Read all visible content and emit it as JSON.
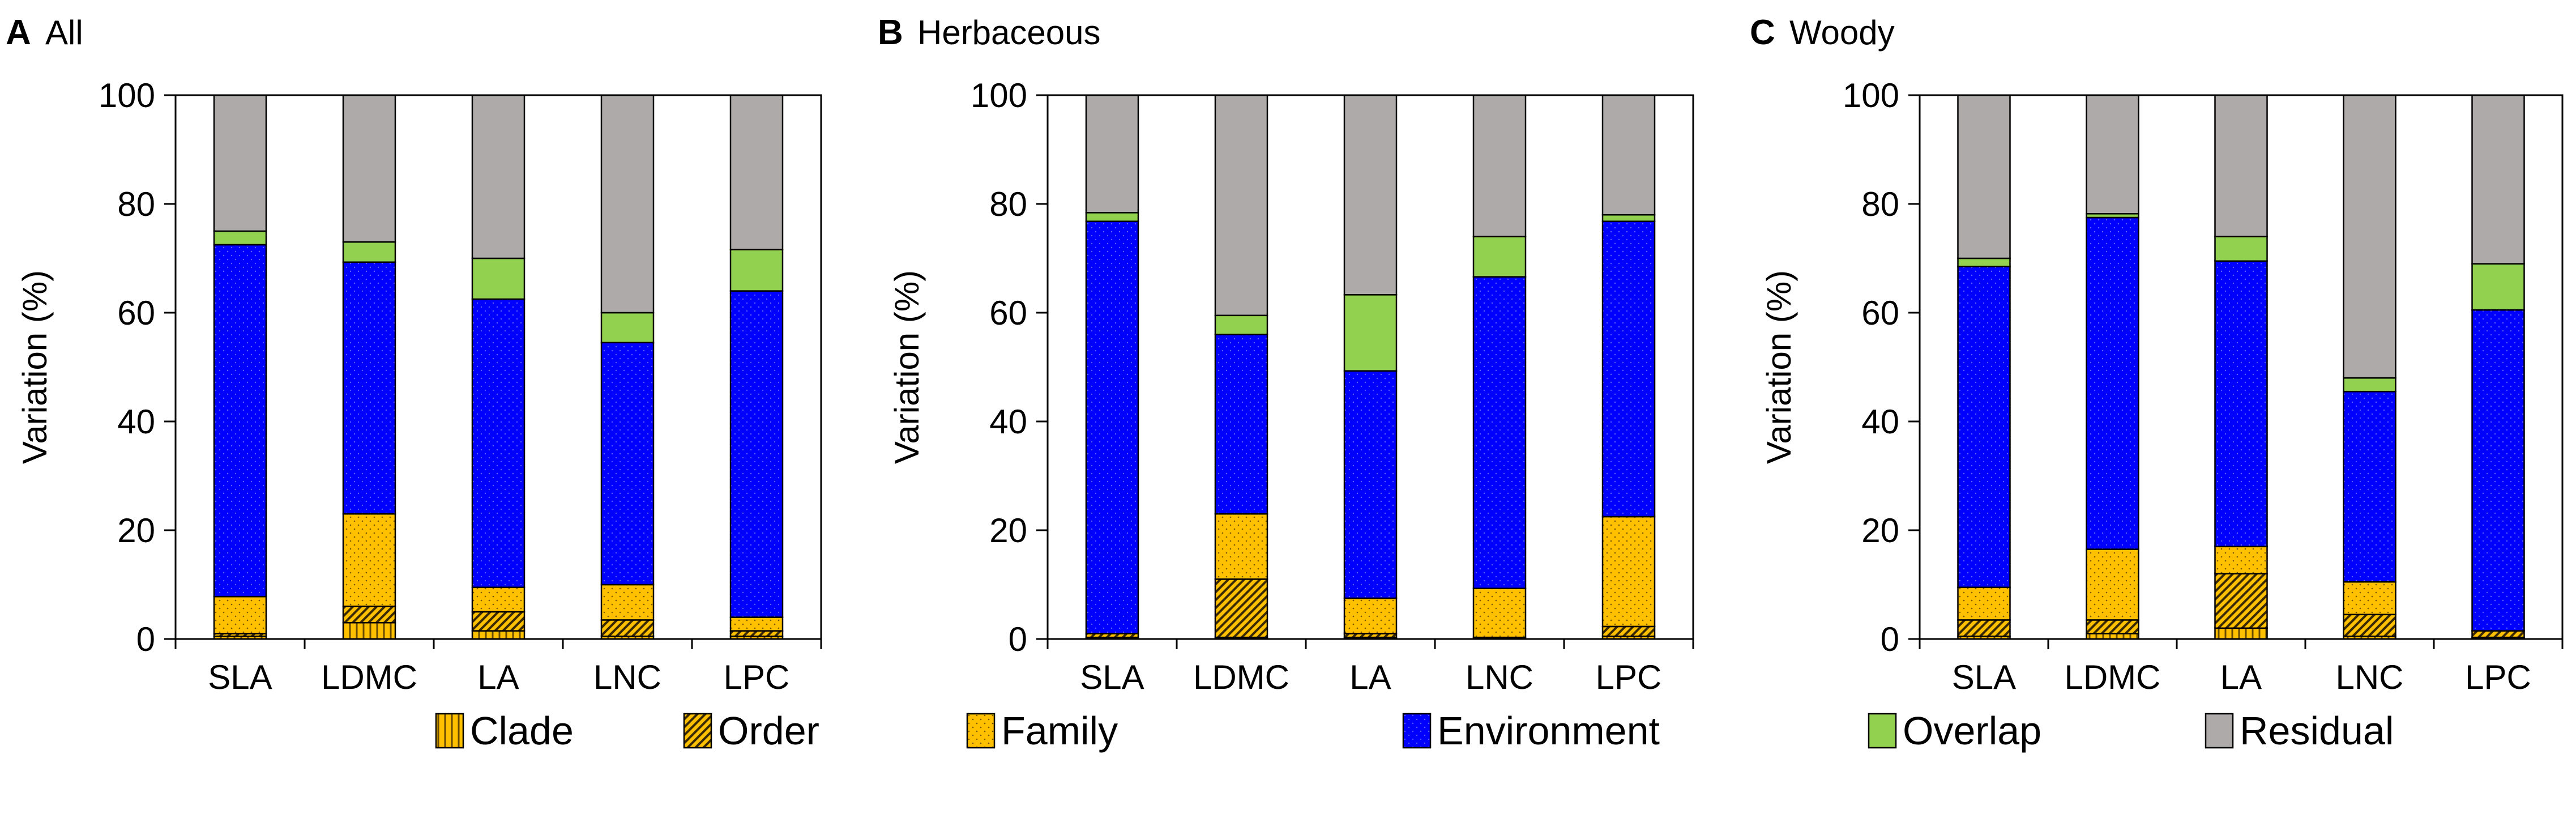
{
  "chart_data": [
    {
      "type": "bar",
      "stacked": true,
      "panel": "A",
      "title": "All",
      "ylabel": "Variation (%)",
      "xlabel": "",
      "ylim": [
        0,
        100
      ],
      "yticks": [
        "0",
        "20",
        "40",
        "60",
        "80",
        "100"
      ],
      "categories": [
        "SLA",
        "LDMC",
        "LA",
        "LNC",
        "LPC"
      ],
      "series": [
        {
          "name": "Clade",
          "values": [
            0.5,
            3,
            1.5,
            0.5,
            0.5
          ]
        },
        {
          "name": "Order",
          "values": [
            0.5,
            3,
            3.5,
            3,
            1
          ]
        },
        {
          "name": "Family",
          "values": [
            6.8,
            17,
            4.5,
            6.5,
            2.5
          ]
        },
        {
          "name": "Environment",
          "values": [
            64.7,
            46.3,
            53,
            44.5,
            60
          ]
        },
        {
          "name": "Overlap",
          "values": [
            2.5,
            3.7,
            7.5,
            5.5,
            7.6
          ]
        },
        {
          "name": "Residual",
          "values": [
            25,
            27,
            30,
            40,
            28.4
          ]
        }
      ]
    },
    {
      "type": "bar",
      "stacked": true,
      "panel": "B",
      "title": "Herbaceous",
      "ylabel": "Variation (%)",
      "xlabel": "",
      "ylim": [
        0,
        100
      ],
      "yticks": [
        "0",
        "20",
        "40",
        "60",
        "80",
        "100"
      ],
      "categories": [
        "SLA",
        "LDMC",
        "LA",
        "LNC",
        "LPC"
      ],
      "series": [
        {
          "name": "Clade",
          "values": [
            0.3,
            0.3,
            0.3,
            0,
            0.5
          ]
        },
        {
          "name": "Order",
          "values": [
            0.7,
            10.7,
            0.7,
            0.3,
            1.8
          ]
        },
        {
          "name": "Family",
          "values": [
            0,
            12,
            6.5,
            9,
            20.2
          ]
        },
        {
          "name": "Environment",
          "values": [
            75.8,
            33,
            41.8,
            57.3,
            54.3
          ]
        },
        {
          "name": "Overlap",
          "values": [
            1.6,
            3.5,
            14,
            7.4,
            1.2
          ]
        },
        {
          "name": "Residual",
          "values": [
            21.6,
            40.5,
            36.7,
            26,
            22
          ]
        }
      ]
    },
    {
      "type": "bar",
      "stacked": true,
      "panel": "C",
      "title": "Woody",
      "ylabel": "Variation (%)",
      "xlabel": "",
      "ylim": [
        0,
        100
      ],
      "yticks": [
        "0",
        "20",
        "40",
        "60",
        "80",
        "100"
      ],
      "categories": [
        "SLA",
        "LDMC",
        "LA",
        "LNC",
        "LPC"
      ],
      "series": [
        {
          "name": "Clade",
          "values": [
            0.5,
            1,
            2,
            0.5,
            0.3
          ]
        },
        {
          "name": "Order",
          "values": [
            3,
            2.5,
            10,
            4,
            1.2
          ]
        },
        {
          "name": "Family",
          "values": [
            6,
            13,
            5,
            6,
            0
          ]
        },
        {
          "name": "Environment",
          "values": [
            59,
            61,
            52.5,
            35,
            59
          ]
        },
        {
          "name": "Overlap",
          "values": [
            1.5,
            0.7,
            4.5,
            2.5,
            8.5
          ]
        },
        {
          "name": "Residual",
          "values": [
            30,
            21.8,
            26,
            52,
            31
          ]
        }
      ]
    }
  ],
  "legend": [
    {
      "name": "Clade",
      "label": "Clade",
      "color": "#FFC000",
      "pattern": "vertical"
    },
    {
      "name": "Order",
      "label": "Order",
      "color": "#FFC000",
      "pattern": "diagonal"
    },
    {
      "name": "Family",
      "label": "Family",
      "color": "#FFC000",
      "pattern": "dots"
    },
    {
      "name": "Environment",
      "label": "Environment",
      "color": "#0000FF",
      "pattern": "dots"
    },
    {
      "name": "Overlap",
      "label": "Overlap",
      "color": "#92D050",
      "pattern": "none"
    },
    {
      "name": "Residual",
      "label": "Residual",
      "color": "#AEAAAA",
      "pattern": "none"
    }
  ]
}
